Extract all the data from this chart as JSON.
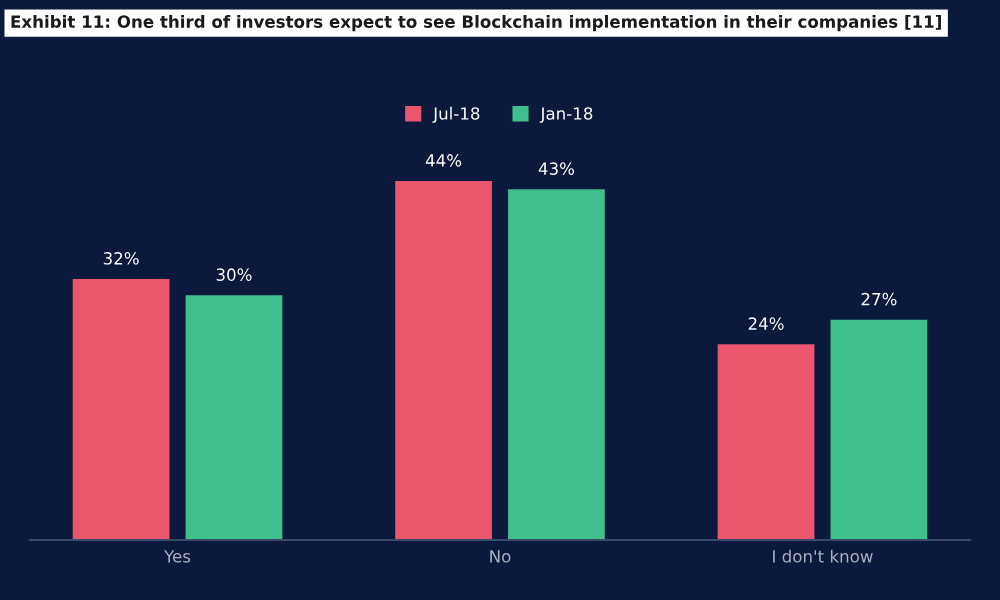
{
  "chart_data": {
    "type": "bar",
    "title": "Exhibit 11: One third of investors expect to see Blockchain implementation in their companies [11]",
    "categories": [
      "Yes",
      "No",
      "I don't know"
    ],
    "series": [
      {
        "name": "Jul-18",
        "color": "#e9566e",
        "values": [
          32,
          44,
          24
        ],
        "value_labels": [
          "32%",
          "44%",
          "24%"
        ]
      },
      {
        "name": "Jan-18",
        "color": "#3fbf8c",
        "values": [
          30,
          43,
          27
        ],
        "value_labels": [
          "30%",
          "43%",
          "27%"
        ]
      }
    ],
    "legend": "top",
    "grid": false,
    "tick_labels": "x"
  }
}
